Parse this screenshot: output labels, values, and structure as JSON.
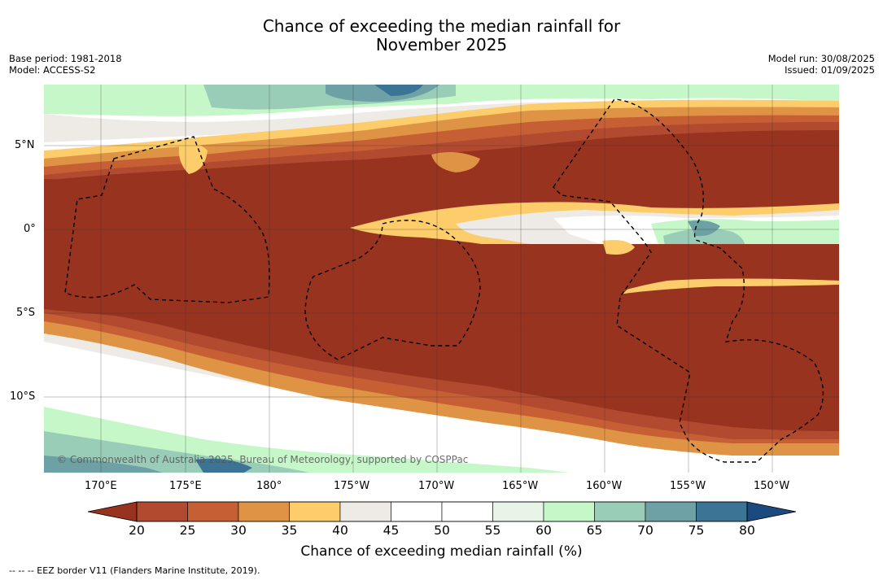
{
  "title_line1": "Chance of exceeding the median rainfall for",
  "title_line2": "November 2025",
  "meta_left": [
    "Base period: 1981-2018",
    "Model: ACCESS-S2"
  ],
  "meta_right": [
    "Model run: 30/08/2025",
    "Issued: 01/09/2025"
  ],
  "lat_labels": [
    "5°N",
    "0°",
    "5°S",
    "10°S"
  ],
  "lon_labels": [
    "170°E",
    "175°E",
    "180°",
    "175°W",
    "170°W",
    "165°W",
    "160°W",
    "155°W",
    "150°W"
  ],
  "copyright": "© Commonwealth of Australia 2025, Bureau of Meteorology, supported by COSPPac",
  "colorbar": {
    "ticks": [
      "20",
      "25",
      "30",
      "35",
      "40",
      "45",
      "50",
      "55",
      "60",
      "65",
      "70",
      "75",
      "80"
    ],
    "colors": [
      "#b14a2e",
      "#c66034",
      "#df9345",
      "#fccd6a",
      "#eeeae6",
      "#ffffff",
      "#ffffff",
      "#e8f4e8",
      "#c6f7c8",
      "#99cdb7",
      "#6ea1a5",
      "#3c7495"
    ],
    "under_color": "#983320",
    "over_color": "#1a4a80",
    "label": "Chance of exceeding median rainfall (%)"
  },
  "footnote": "--  --  -- EEZ border V11 (Flanders Marine Institute, 2019)."
}
